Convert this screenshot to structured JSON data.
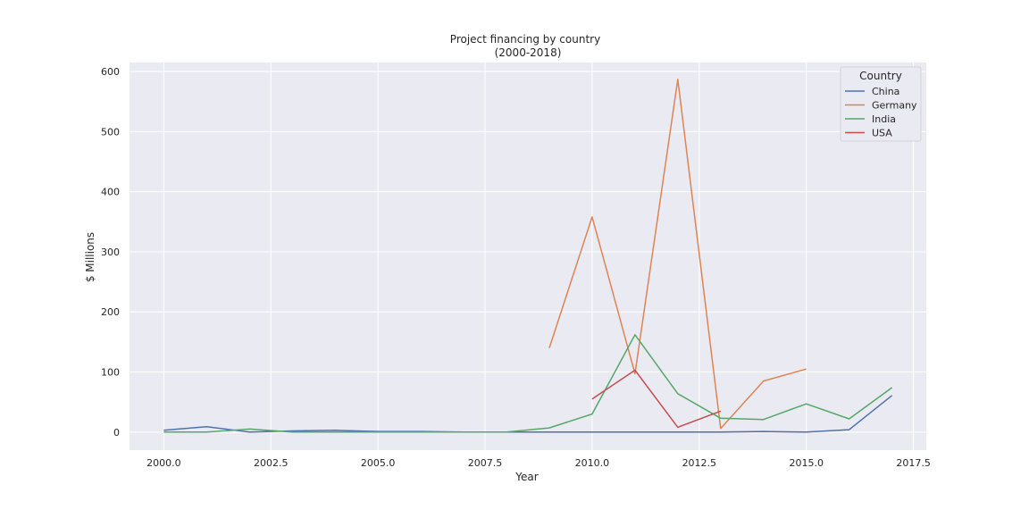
{
  "chart_data": {
    "type": "line",
    "title": "Project financing by country",
    "subtitle": "(2000-2018)",
    "xlabel": "Year",
    "ylabel": "$ Millions",
    "xlim": [
      1999.2,
      2017.8
    ],
    "ylim": [
      -30,
      615
    ],
    "xticks": [
      2000.0,
      2002.5,
      2005.0,
      2007.5,
      2010.0,
      2012.5,
      2015.0,
      2017.5
    ],
    "xtick_labels": [
      "2000.0",
      "2002.5",
      "2005.0",
      "2007.5",
      "2010.0",
      "2012.5",
      "2015.0",
      "2017.5"
    ],
    "yticks": [
      0,
      100,
      200,
      300,
      400,
      500,
      600
    ],
    "ytick_labels": [
      "0",
      "100",
      "200",
      "300",
      "400",
      "500",
      "600"
    ],
    "grid": true,
    "legend": {
      "title": "Country",
      "placement": "top-right"
    },
    "series": [
      {
        "name": "China",
        "color": "#4c72b0",
        "points": [
          [
            2000,
            3
          ],
          [
            2001,
            9
          ],
          [
            2002,
            0
          ],
          [
            2003,
            2
          ],
          [
            2004,
            3
          ],
          [
            2005,
            1
          ],
          [
            2006,
            1
          ],
          [
            2007,
            0
          ],
          [
            2008,
            0
          ],
          [
            2009,
            0
          ],
          [
            2010,
            0
          ],
          [
            2011,
            0
          ],
          [
            2012,
            0
          ],
          [
            2013,
            0
          ],
          [
            2014,
            1
          ],
          [
            2015,
            0
          ],
          [
            2016,
            4
          ],
          [
            2017,
            61
          ]
        ]
      },
      {
        "name": "Germany",
        "color": "#dd8452",
        "points": [
          [
            2009,
            140
          ],
          [
            2010,
            358
          ],
          [
            2011,
            97
          ],
          [
            2012,
            587
          ],
          [
            2013,
            6
          ],
          [
            2014,
            85
          ],
          [
            2015,
            105
          ]
        ]
      },
      {
        "name": "India",
        "color": "#55a868",
        "points": [
          [
            2000,
            0
          ],
          [
            2001,
            0
          ],
          [
            2002,
            5
          ],
          [
            2003,
            0
          ],
          [
            2004,
            0
          ],
          [
            2005,
            0
          ],
          [
            2006,
            0
          ],
          [
            2007,
            0
          ],
          [
            2008,
            0
          ],
          [
            2009,
            7
          ],
          [
            2010,
            30
          ],
          [
            2011,
            162
          ],
          [
            2012,
            64
          ],
          [
            2013,
            23
          ],
          [
            2014,
            21
          ],
          [
            2015,
            47
          ],
          [
            2016,
            22
          ],
          [
            2017,
            74
          ]
        ]
      },
      {
        "name": "USA",
        "color": "#c44e52",
        "points": [
          [
            2010,
            55
          ],
          [
            2011,
            103
          ],
          [
            2012,
            8
          ],
          [
            2013,
            35
          ]
        ]
      }
    ]
  }
}
